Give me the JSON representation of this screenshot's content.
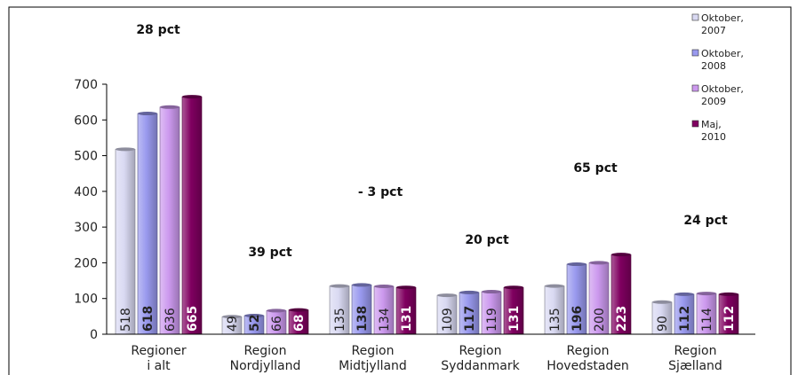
{
  "chart_data": {
    "type": "bar",
    "categories": [
      [
        "Regioner",
        "i alt"
      ],
      [
        "Region",
        "Nordjylland"
      ],
      [
        "Region",
        "Midtjylland"
      ],
      [
        "Region",
        "Syddanmark"
      ],
      [
        "Region",
        "Hovedstaden"
      ],
      [
        "Region",
        "Sjælland"
      ]
    ],
    "series": [
      {
        "name": "Oktober, 2007",
        "legend_lines": [
          "Oktober,",
          "2007"
        ],
        "color": "#d9d9f2",
        "label_bold": false,
        "values": [
          518,
          49,
          135,
          109,
          135,
          90
        ],
        "labels": [
          "518",
          "49",
          "135",
          "109",
          "135",
          "90"
        ]
      },
      {
        "name": "Oktober, 2008",
        "legend_lines": [
          "Oktober,",
          "2008"
        ],
        "color": "#9999ee",
        "label_bold": true,
        "values": [
          618,
          52,
          138,
          117,
          196,
          112
        ],
        "labels": [
          "618",
          "52",
          "138",
          "117",
          "196",
          "112"
        ]
      },
      {
        "name": "Oktober, 2009",
        "legend_lines": [
          "Oktober,",
          "2009"
        ],
        "color": "#cc99ee",
        "label_bold": false,
        "values": [
          636,
          66,
          134,
          119,
          200,
          114
        ],
        "labels": [
          "636",
          "66",
          "134",
          "119",
          "200",
          "114"
        ]
      },
      {
        "name": "Maj, 2010",
        "legend_lines": [
          "Maj,",
          "2010"
        ],
        "color": "#800060",
        "label_bold": true,
        "values": [
          665,
          68,
          131,
          131,
          223,
          112
        ],
        "labels": [
          "665",
          "68",
          "131",
          "131",
          "223",
          "112"
        ]
      }
    ],
    "annotations": [
      "28 pct",
      "39 pct",
      "- 3 pct",
      "20 pct",
      "65 pct",
      "24 pct"
    ],
    "ylim": [
      0,
      700
    ],
    "yticks": [
      0,
      100,
      200,
      300,
      400,
      500,
      600,
      700
    ],
    "legend_position": "top-right",
    "grid": false
  }
}
